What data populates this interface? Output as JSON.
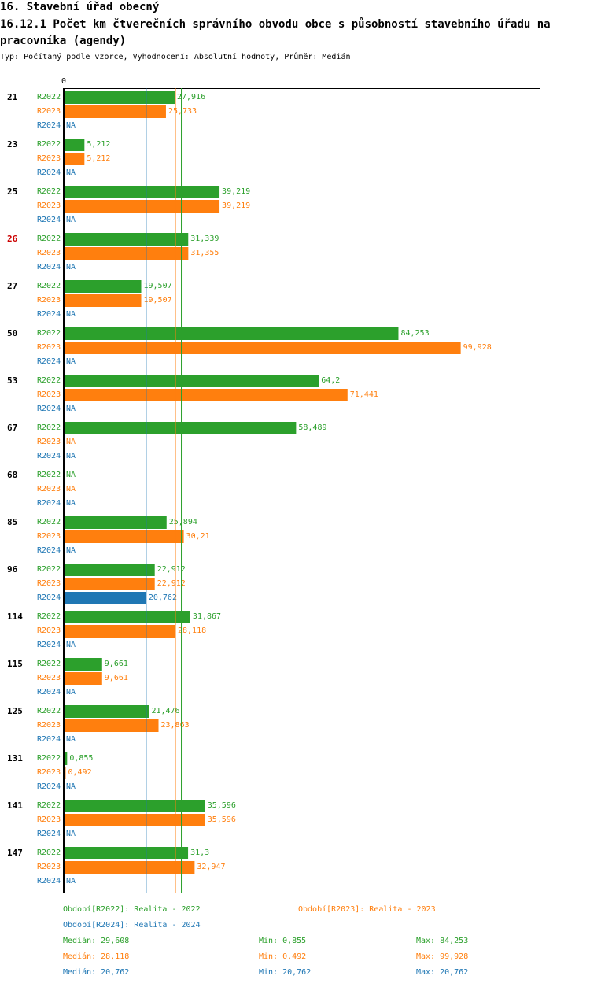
{
  "title": "16. Stavební úřad obecný",
  "subtitle": "16.12.1 Počet km čtverečních správního obvodu obce s působností stavebního úřadu na pracovníka (agendy)",
  "info": "Typ: Počítaný podle vzorce, Vyhodnocení: Absolutní hodnoty, Průměr: Medián",
  "colors": {
    "R2022": "#2ca02c",
    "R2023": "#ff7f0e",
    "R2024": "#1f77b4",
    "highlight": "#cc0000"
  },
  "chart_data": {
    "type": "bar",
    "orientation": "horizontal",
    "axis_zero_label": "0",
    "xlim": [
      0,
      99.928
    ],
    "highlighted_category": "26",
    "na_label": "NA",
    "categories": [
      "21",
      "23",
      "25",
      "26",
      "27",
      "50",
      "53",
      "67",
      "68",
      "85",
      "96",
      "114",
      "115",
      "125",
      "131",
      "141",
      "147"
    ],
    "series": [
      {
        "name": "R2022",
        "values": [
          27.916,
          5.212,
          39.219,
          31.339,
          19.507,
          84.253,
          64.2,
          58.489,
          null,
          25.894,
          22.912,
          31.867,
          9.661,
          21.476,
          0.855,
          35.596,
          31.3
        ],
        "labels": [
          "27,916",
          "5,212",
          "39,219",
          "31,339",
          "19,507",
          "84,253",
          "64,2",
          "58,489",
          "NA",
          "25,894",
          "22,912",
          "31,867",
          "9,661",
          "21,476",
          "0,855",
          "35,596",
          "31,3"
        ]
      },
      {
        "name": "R2023",
        "values": [
          25.733,
          5.212,
          39.219,
          31.355,
          19.507,
          99.928,
          71.441,
          null,
          null,
          30.21,
          22.912,
          28.118,
          9.661,
          23.863,
          0.492,
          35.596,
          32.947
        ],
        "labels": [
          "25,733",
          "5,212",
          "39,219",
          "31,355",
          "19,507",
          "99,928",
          "71,441",
          "NA",
          "NA",
          "30,21",
          "22,912",
          "28,118",
          "9,661",
          "23,863",
          "0,492",
          "35,596",
          "32,947"
        ]
      },
      {
        "name": "R2024",
        "values": [
          null,
          null,
          null,
          null,
          null,
          null,
          null,
          null,
          null,
          null,
          20.762,
          null,
          null,
          null,
          null,
          null,
          null
        ],
        "labels": [
          "NA",
          "NA",
          "NA",
          "NA",
          "NA",
          "NA",
          "NA",
          "NA",
          "NA",
          "NA",
          "20,762",
          "NA",
          "NA",
          "NA",
          "NA",
          "NA",
          "NA"
        ]
      }
    ],
    "median_lines": [
      {
        "series": "R2022",
        "value": 29.608
      },
      {
        "series": "R2023",
        "value": 28.118
      },
      {
        "series": "R2024",
        "value": 20.762
      }
    ]
  },
  "legend": {
    "p2022": "Období[R2022]: Realita - 2022",
    "p2023": "Období[R2023]: Realita - 2023",
    "p2024": "Období[R2024]: Realita - 2024"
  },
  "stats": [
    {
      "median": "Medián: 29,608",
      "min": "Min: 0,855",
      "max": "Max: 84,253"
    },
    {
      "median": "Medián: 28,118",
      "min": "Min: 0,492",
      "max": "Max: 99,928"
    },
    {
      "median": "Medián: 20,762",
      "min": "Min: 20,762",
      "max": "Max: 20,762"
    }
  ]
}
